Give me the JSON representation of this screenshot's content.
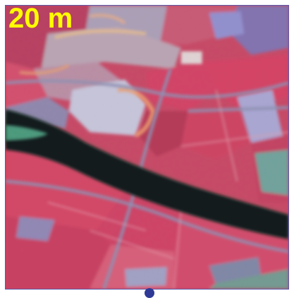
{
  "image": {
    "scale_label": "20 m",
    "label_color": "#ffff00",
    "frame_color": "#5b5aa8",
    "marker_color": "#2e3a96",
    "palette": {
      "field_red": "#d23d5f",
      "field_pink": "#e07a8e",
      "field_magenta": "#b8305a",
      "urban_gray": "#a8a6b6",
      "bare_blue": "#8f93c4",
      "water": "#071208",
      "water_edge_green": "#3c8f6a",
      "road": "#7f8aa8"
    }
  }
}
